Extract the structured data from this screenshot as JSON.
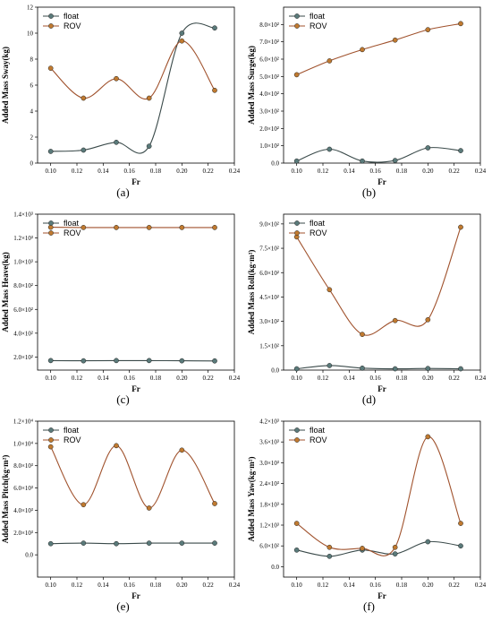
{
  "colors": {
    "float": "#3a4a4a",
    "rov": "#a0522d",
    "float_marker": "#5a7a7a",
    "rov_marker": "#c07a30"
  },
  "chart_data": [
    {
      "type": "line",
      "caption": "(a)",
      "xlabel": "Fr",
      "ylabel": "Added Mass Sway(kg)",
      "xlim": [
        0.09,
        0.24
      ],
      "ylim": [
        0,
        12
      ],
      "xticks": [
        "0.10",
        "0.12",
        "0.14",
        "0.16",
        "0.18",
        "0.20",
        "0.22",
        "0.24"
      ],
      "yticks": [
        "0",
        "2",
        "4",
        "6",
        "8",
        "10",
        "12"
      ],
      "legend": "top-left",
      "x": [
        0.1,
        0.125,
        0.15,
        0.175,
        0.2,
        0.225
      ],
      "series": [
        {
          "name": "float",
          "values": [
            0.9,
            1.0,
            1.6,
            1.3,
            10.0,
            10.4
          ]
        },
        {
          "name": "ROV",
          "values": [
            7.3,
            5.0,
            6.5,
            5.0,
            9.4,
            5.6
          ]
        }
      ]
    },
    {
      "type": "line",
      "caption": "(b)",
      "xlabel": "Fr",
      "ylabel": "Added Mass Surge(kg)",
      "xlim": [
        0.09,
        0.24
      ],
      "ylim": [
        0,
        900
      ],
      "xticks": [
        "0.10",
        "0.12",
        "0.14",
        "0.16",
        "0.18",
        "0.20",
        "0.22",
        "0.24"
      ],
      "yticks": [
        "0.0",
        "1.0×10²",
        "2.0×10²",
        "3.0×10²",
        "4.0×10²",
        "5.0×10²",
        "6.0×10²",
        "7.0×10²",
        "8.0×10²"
      ],
      "legend": "top-left",
      "x": [
        0.1,
        0.125,
        0.15,
        0.175,
        0.2,
        0.225
      ],
      "series": [
        {
          "name": "float",
          "values": [
            12,
            80,
            12,
            15,
            88,
            72
          ]
        },
        {
          "name": "ROV",
          "values": [
            510,
            590,
            655,
            710,
            770,
            805
          ]
        }
      ]
    },
    {
      "type": "line",
      "caption": "(c)",
      "xlabel": "Fr",
      "ylabel": "Added Mass Heave(kg)",
      "xlim": [
        0.09,
        0.24
      ],
      "ylim": [
        90,
        1400
      ],
      "xticks": [
        "0.10",
        "0.12",
        "0.14",
        "0.16",
        "0.18",
        "0.20",
        "0.22",
        "0.24"
      ],
      "yticks": [
        "2.0×10²",
        "4.0×10²",
        "6.0×10²",
        "8.0×10²",
        "1.0×10³",
        "1.2×10³",
        "1.4×10³"
      ],
      "legend": "top-left",
      "x": [
        0.1,
        0.125,
        0.15,
        0.175,
        0.2,
        0.225
      ],
      "series": [
        {
          "name": "float",
          "values": [
            170,
            168,
            170,
            170,
            168,
            167
          ]
        },
        {
          "name": "ROV",
          "values": [
            1290,
            1288,
            1288,
            1288,
            1288,
            1288
          ]
        }
      ]
    },
    {
      "type": "line",
      "caption": "(d)",
      "xlabel": "Fr",
      "ylabel": "Added Mass Roll(kg·m²)",
      "xlim": [
        0.09,
        0.24
      ],
      "ylim": [
        0,
        960
      ],
      "xticks": [
        "0.10",
        "0.12",
        "0.14",
        "0.16",
        "0.18",
        "0.20",
        "0.22",
        "0.24"
      ],
      "yticks": [
        "0.0",
        "1.5×10²",
        "3.0×10²",
        "4.5×10²",
        "6.0×10²",
        "7.5×10²",
        "9.0×10²"
      ],
      "legend": "top-left",
      "x": [
        0.1,
        0.125,
        0.15,
        0.175,
        0.2,
        0.225
      ],
      "series": [
        {
          "name": "float",
          "values": [
            8,
            28,
            12,
            8,
            10,
            8
          ]
        },
        {
          "name": "ROV",
          "values": [
            820,
            495,
            220,
            305,
            310,
            880
          ]
        }
      ]
    },
    {
      "type": "line",
      "caption": "(e)",
      "xlabel": "Fr",
      "ylabel": "Added Mass Pitch(kg·m²)",
      "xlim": [
        0.09,
        0.24
      ],
      "ylim": [
        -2000,
        12000
      ],
      "xticks": [
        "0.10",
        "0.12",
        "0.14",
        "0.16",
        "0.18",
        "0.20",
        "0.22",
        "0.24"
      ],
      "yticks": [
        "0.0",
        "2.0×10³",
        "4.0×10³",
        "6.0×10³",
        "8.0×10³",
        "1.0×10⁴",
        "1.2×10⁴"
      ],
      "legend": "top-left",
      "x": [
        0.1,
        0.125,
        0.15,
        0.175,
        0.2,
        0.225
      ],
      "series": [
        {
          "name": "float",
          "values": [
            1000,
            1050,
            1000,
            1050,
            1050,
            1050
          ]
        },
        {
          "name": "ROV",
          "values": [
            9700,
            4500,
            9800,
            4200,
            9400,
            4600
          ]
        }
      ]
    },
    {
      "type": "line",
      "caption": "(f)",
      "xlabel": "Fr",
      "ylabel": "Added Mass Yaw(kg·m²)",
      "xlim": [
        0.09,
        0.24
      ],
      "ylim": [
        -300,
        4200
      ],
      "xticks": [
        "0.10",
        "0.12",
        "0.14",
        "0.16",
        "0.18",
        "0.20",
        "0.22",
        "0.24"
      ],
      "yticks": [
        "0.0",
        "6.0×10²",
        "1.2×10³",
        "1.8×10³",
        "2.4×10³",
        "3.0×10³",
        "3.6×10³",
        "4.2×10³"
      ],
      "legend": "top-left",
      "x": [
        0.1,
        0.125,
        0.15,
        0.175,
        0.2,
        0.225
      ],
      "series": [
        {
          "name": "float",
          "values": [
            480,
            300,
            480,
            370,
            720,
            600
          ]
        },
        {
          "name": "ROV",
          "values": [
            1250,
            560,
            530,
            560,
            3750,
            1250
          ]
        }
      ]
    }
  ]
}
